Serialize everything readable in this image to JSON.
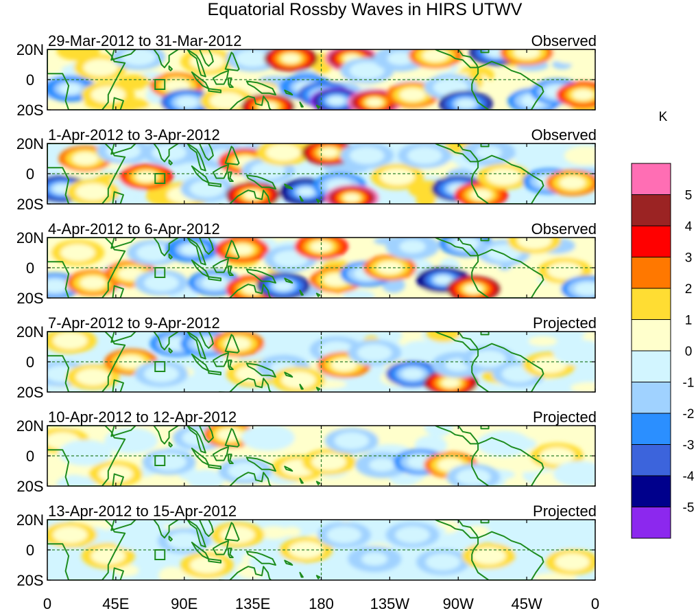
{
  "figure": {
    "title": "Equatorial Rossby Waves in HIRS UTWV"
  },
  "panels": [
    {
      "date_range": "29-Mar-2012 to 31-Mar-2012",
      "status": "Observed",
      "intensity": 1.0
    },
    {
      "date_range": "1-Apr-2012 to 3-Apr-2012",
      "status": "Observed",
      "intensity": 1.0
    },
    {
      "date_range": "4-Apr-2012 to 6-Apr-2012",
      "status": "Observed",
      "intensity": 0.85
    },
    {
      "date_range": "7-Apr-2012 to 9-Apr-2012",
      "status": "Projected",
      "intensity": 0.65
    },
    {
      "date_range": "10-Apr-2012 to 12-Apr-2012",
      "status": "Projected",
      "intensity": 0.45
    },
    {
      "date_range": "13-Apr-2012 to 15-Apr-2012",
      "status": "Projected",
      "intensity": 0.3
    }
  ],
  "axes": {
    "lat_labels": [
      "20N",
      "0",
      "20S"
    ],
    "lon_labels": [
      "0",
      "45E",
      "90E",
      "135E",
      "180",
      "135W",
      "90W",
      "45W",
      "0"
    ],
    "lon_values": [
      0,
      45,
      90,
      135,
      180,
      225,
      270,
      315,
      360
    ],
    "lat_range": [
      -20,
      20
    ],
    "lon_range": [
      0,
      360
    ]
  },
  "colorbar": {
    "unit": "K",
    "labels": [
      "5",
      "4",
      "3",
      "2",
      "1",
      "0",
      "-1",
      "-2",
      "-3",
      "-4",
      "-5"
    ],
    "colors": [
      "#ff6eb4",
      "#9b2323",
      "#ff0000",
      "#ff7800",
      "#ffdd33",
      "#ffffcc",
      "#d2f5ff",
      "#a0d2ff",
      "#2b8fff",
      "#3c64dc",
      "#00008c",
      "#8c28ee"
    ]
  },
  "map_colors": {
    "land": "#1d8c1d",
    "frame": "#000000",
    "guides": "#2a7f2a"
  }
}
